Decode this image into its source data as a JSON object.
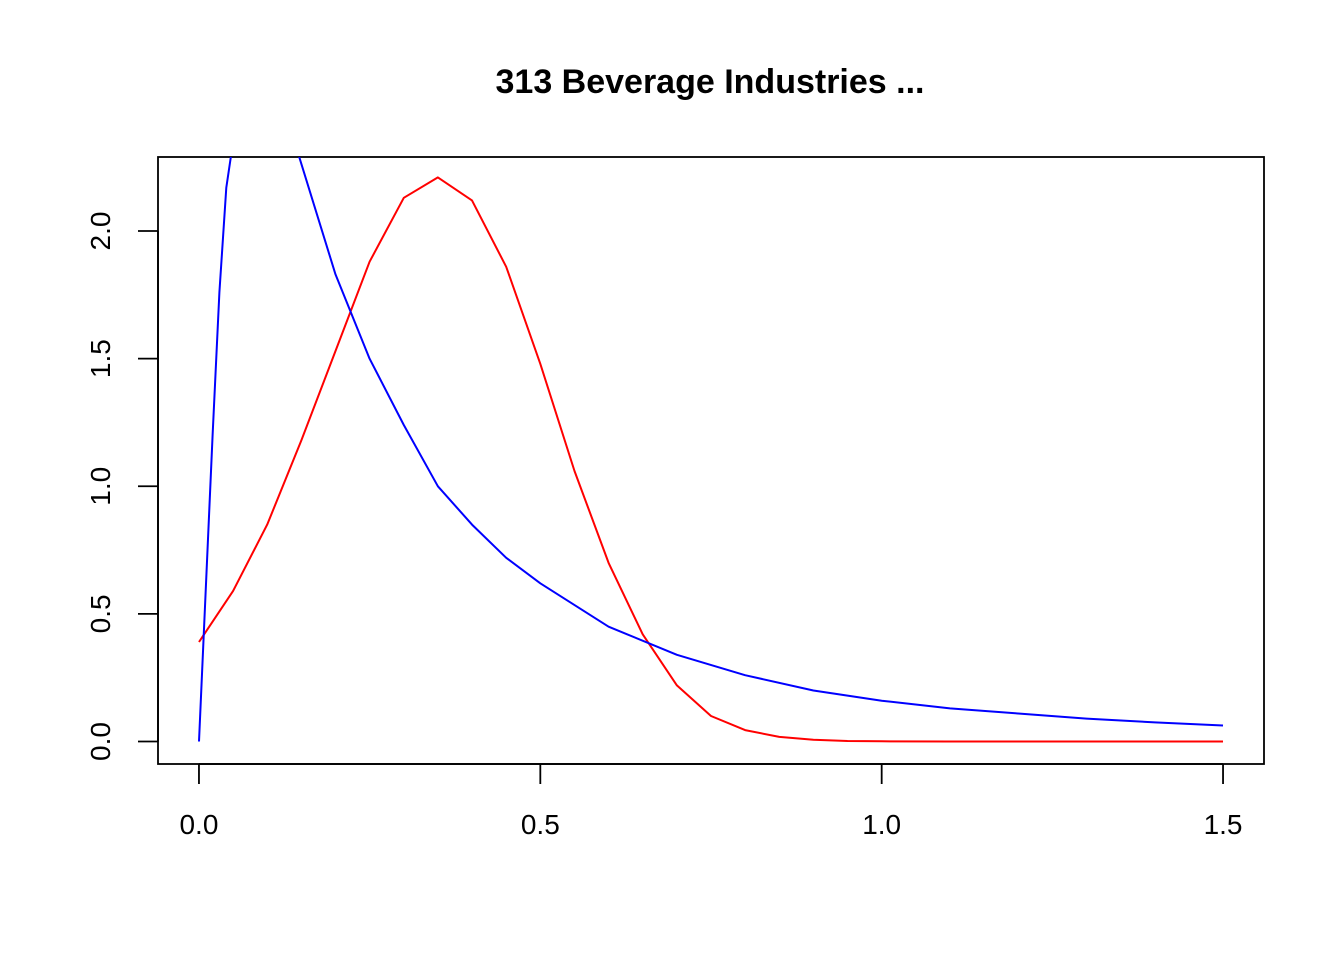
{
  "chart_data": {
    "type": "line",
    "title": "313 Beverage Industries ...",
    "xlabel": "",
    "ylabel": "",
    "xlim": [
      -0.06,
      1.56
    ],
    "ylim": [
      -0.088,
      2.29
    ],
    "x_ticks": [
      0.0,
      0.5,
      1.0,
      1.5
    ],
    "x_tick_labels": [
      "0.0",
      "0.5",
      "1.0",
      "1.5"
    ],
    "y_ticks": [
      0.0,
      0.5,
      1.0,
      1.5,
      2.0
    ],
    "y_tick_labels": [
      "0.0",
      "0.5",
      "1.0",
      "1.5",
      "2.0"
    ],
    "grid": false,
    "series": [
      {
        "color": "#ff0000",
        "x": [
          0.0,
          0.05,
          0.1,
          0.15,
          0.2,
          0.25,
          0.3,
          0.35,
          0.4,
          0.45,
          0.5,
          0.55,
          0.6,
          0.65,
          0.7,
          0.75,
          0.8,
          0.85,
          0.9,
          0.95,
          1.0,
          1.1,
          1.2,
          1.3,
          1.4,
          1.5
        ],
        "y": [
          0.39,
          0.59,
          0.85,
          1.18,
          1.53,
          1.88,
          2.13,
          2.21,
          2.12,
          1.86,
          1.48,
          1.06,
          0.7,
          0.42,
          0.22,
          0.1,
          0.045,
          0.018,
          0.007,
          0.002,
          0.001,
          0.0,
          0.0,
          0.0,
          0.0,
          0.0
        ]
      },
      {
        "color": "#0000ff",
        "x": [
          0.0,
          0.01,
          0.02,
          0.03,
          0.04,
          0.05,
          0.14,
          0.2,
          0.25,
          0.3,
          0.35,
          0.4,
          0.45,
          0.5,
          0.6,
          0.7,
          0.8,
          0.9,
          1.0,
          1.1,
          1.2,
          1.3,
          1.4,
          1.5
        ],
        "y": [
          0.0,
          0.6,
          1.2,
          1.76,
          2.17,
          2.35,
          2.35,
          1.83,
          1.5,
          1.24,
          1.0,
          0.85,
          0.72,
          0.62,
          0.45,
          0.34,
          0.26,
          0.2,
          0.16,
          0.13,
          0.11,
          0.09,
          0.075,
          0.063
        ]
      }
    ]
  }
}
